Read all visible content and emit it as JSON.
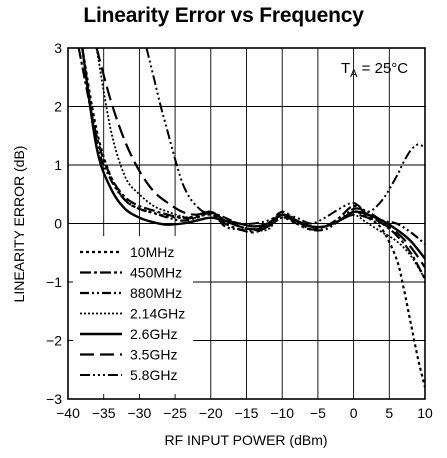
{
  "chart_data": {
    "type": "line",
    "title": "Linearity Error vs Frequency",
    "xlabel": "RF INPUT POWER (dBm)",
    "ylabel": "LINEARITY ERROR (dB)",
    "xlim": [
      -40,
      10
    ],
    "ylim": [
      -3,
      3
    ],
    "xticks": [
      "−40",
      "−35",
      "−30",
      "−25",
      "−20",
      "−15",
      "−10",
      "−5",
      "0",
      "5",
      "10"
    ],
    "yticks": [
      "3",
      "2",
      "1",
      "0",
      "−1",
      "−2",
      "−3"
    ],
    "grid": true,
    "legend_position": "bottom-left",
    "annotation": {
      "prefix": "T",
      "subscript": "A",
      "suffix": " = 25°C"
    },
    "series": [
      {
        "name": "10MHz",
        "dash": "3 3",
        "width": 2.2,
        "x": [
          -38,
          -36,
          -34,
          -32,
          -30,
          -28,
          -26,
          -24,
          -22,
          -20,
          -18,
          -16,
          -14,
          -12,
          -10,
          -8,
          -6,
          -4,
          -2,
          0,
          2,
          4,
          6,
          7,
          8,
          9,
          10
        ],
        "y": [
          3.0,
          1.6,
          0.8,
          0.4,
          0.25,
          0.18,
          0.12,
          0.1,
          0.12,
          0.15,
          0.05,
          -0.05,
          -0.1,
          -0.05,
          0.1,
          0.0,
          -0.05,
          -0.05,
          0.05,
          0.2,
          0.1,
          -0.1,
          -0.6,
          -1.1,
          -1.7,
          -2.3,
          -2.8
        ]
      },
      {
        "name": "450MHz",
        "dash": "11 3 3 3",
        "width": 2.2,
        "x": [
          -38.5,
          -36,
          -34,
          -32,
          -30,
          -28,
          -26,
          -24,
          -22,
          -20,
          -18,
          -16,
          -14,
          -12,
          -10,
          -8,
          -6,
          -4,
          -2,
          0,
          2,
          4,
          6,
          8,
          10
        ],
        "y": [
          3.0,
          1.5,
          0.8,
          0.45,
          0.3,
          0.22,
          0.15,
          0.1,
          0.1,
          0.18,
          0.0,
          -0.1,
          -0.15,
          -0.05,
          0.15,
          0.0,
          -0.1,
          -0.05,
          0.1,
          0.3,
          0.15,
          0.0,
          -0.2,
          -0.5,
          -0.95
        ]
      },
      {
        "name": "880MHz",
        "dash": "9 3 2 3 2 3",
        "width": 2.2,
        "x": [
          -38,
          -36,
          -34,
          -32,
          -30,
          -28,
          -26,
          -24,
          -22,
          -20,
          -18,
          -16,
          -14,
          -12,
          -10,
          -8,
          -6,
          -4,
          -2,
          0,
          2,
          4,
          6,
          8,
          10
        ],
        "y": [
          3.0,
          1.4,
          0.75,
          0.4,
          0.25,
          0.18,
          0.1,
          0.05,
          0.1,
          0.2,
          -0.05,
          -0.1,
          -0.12,
          0.0,
          0.2,
          0.05,
          -0.1,
          -0.1,
          0.05,
          0.25,
          0.2,
          0.05,
          0.0,
          -0.15,
          -0.35
        ]
      },
      {
        "name": "2.14GHz",
        "dash": "2 2",
        "width": 1.8,
        "x": [
          -36,
          -34,
          -32,
          -30,
          -28,
          -26,
          -24,
          -22,
          -20,
          -18,
          -16,
          -14,
          -12,
          -10,
          -8,
          -6,
          -4,
          -2,
          0,
          2,
          4,
          6,
          8,
          10
        ],
        "y": [
          3.0,
          1.6,
          0.8,
          0.5,
          0.3,
          0.2,
          0.12,
          0.1,
          0.2,
          0.05,
          -0.05,
          -0.1,
          -0.1,
          0.15,
          0.05,
          -0.05,
          -0.05,
          0.05,
          0.15,
          0.0,
          -0.15,
          -0.3,
          -0.55,
          -0.95
        ]
      },
      {
        "name": "2.6GHz",
        "dash": "",
        "width": 2.4,
        "x": [
          -38,
          -36,
          -34,
          -32,
          -30,
          -28,
          -26,
          -24,
          -22,
          -20,
          -18,
          -16,
          -14,
          -12,
          -10,
          -8,
          -6,
          -4,
          -2,
          0,
          2,
          4,
          6,
          8,
          10
        ],
        "y": [
          3.0,
          1.3,
          0.6,
          0.25,
          0.1,
          0.02,
          -0.02,
          0.0,
          0.05,
          0.1,
          0.05,
          0.0,
          -0.05,
          0.0,
          0.15,
          0.05,
          -0.05,
          -0.05,
          0.05,
          0.2,
          0.15,
          0.05,
          -0.1,
          -0.3,
          -0.6
        ]
      },
      {
        "name": "3.5GHz",
        "dash": "14 6",
        "width": 2.2,
        "x": [
          -36,
          -34,
          -32,
          -30,
          -28,
          -26,
          -24,
          -22,
          -20,
          -18,
          -16,
          -14,
          -12,
          -10,
          -8,
          -6,
          -4,
          -2,
          0,
          2,
          4,
          6,
          8,
          10
        ],
        "y": [
          3.0,
          2.1,
          1.4,
          0.9,
          0.55,
          0.35,
          0.2,
          0.15,
          0.2,
          0.05,
          -0.05,
          -0.1,
          -0.05,
          0.1,
          0.05,
          -0.05,
          -0.05,
          0.05,
          0.15,
          0.1,
          0.0,
          -0.15,
          -0.4,
          -0.75
        ]
      },
      {
        "name": "5.8GHz",
        "dash": "10 3 2 3 2 3 2 3",
        "width": 2.0,
        "x": [
          -29,
          -28,
          -27,
          -26,
          -25,
          -24,
          -23,
          -22,
          -21,
          -20,
          -18,
          -16,
          -14,
          -12,
          -10,
          -8,
          -6,
          -4,
          -2,
          0,
          2,
          4,
          6,
          7,
          8,
          9,
          10
        ],
        "y": [
          3.0,
          2.5,
          2.0,
          1.55,
          1.1,
          0.7,
          0.45,
          0.3,
          0.2,
          0.2,
          0.1,
          0.0,
          0.0,
          0.05,
          0.15,
          0.1,
          0.0,
          0.1,
          0.25,
          0.35,
          0.2,
          0.4,
          0.8,
          1.05,
          1.25,
          1.35,
          1.3
        ]
      }
    ]
  }
}
